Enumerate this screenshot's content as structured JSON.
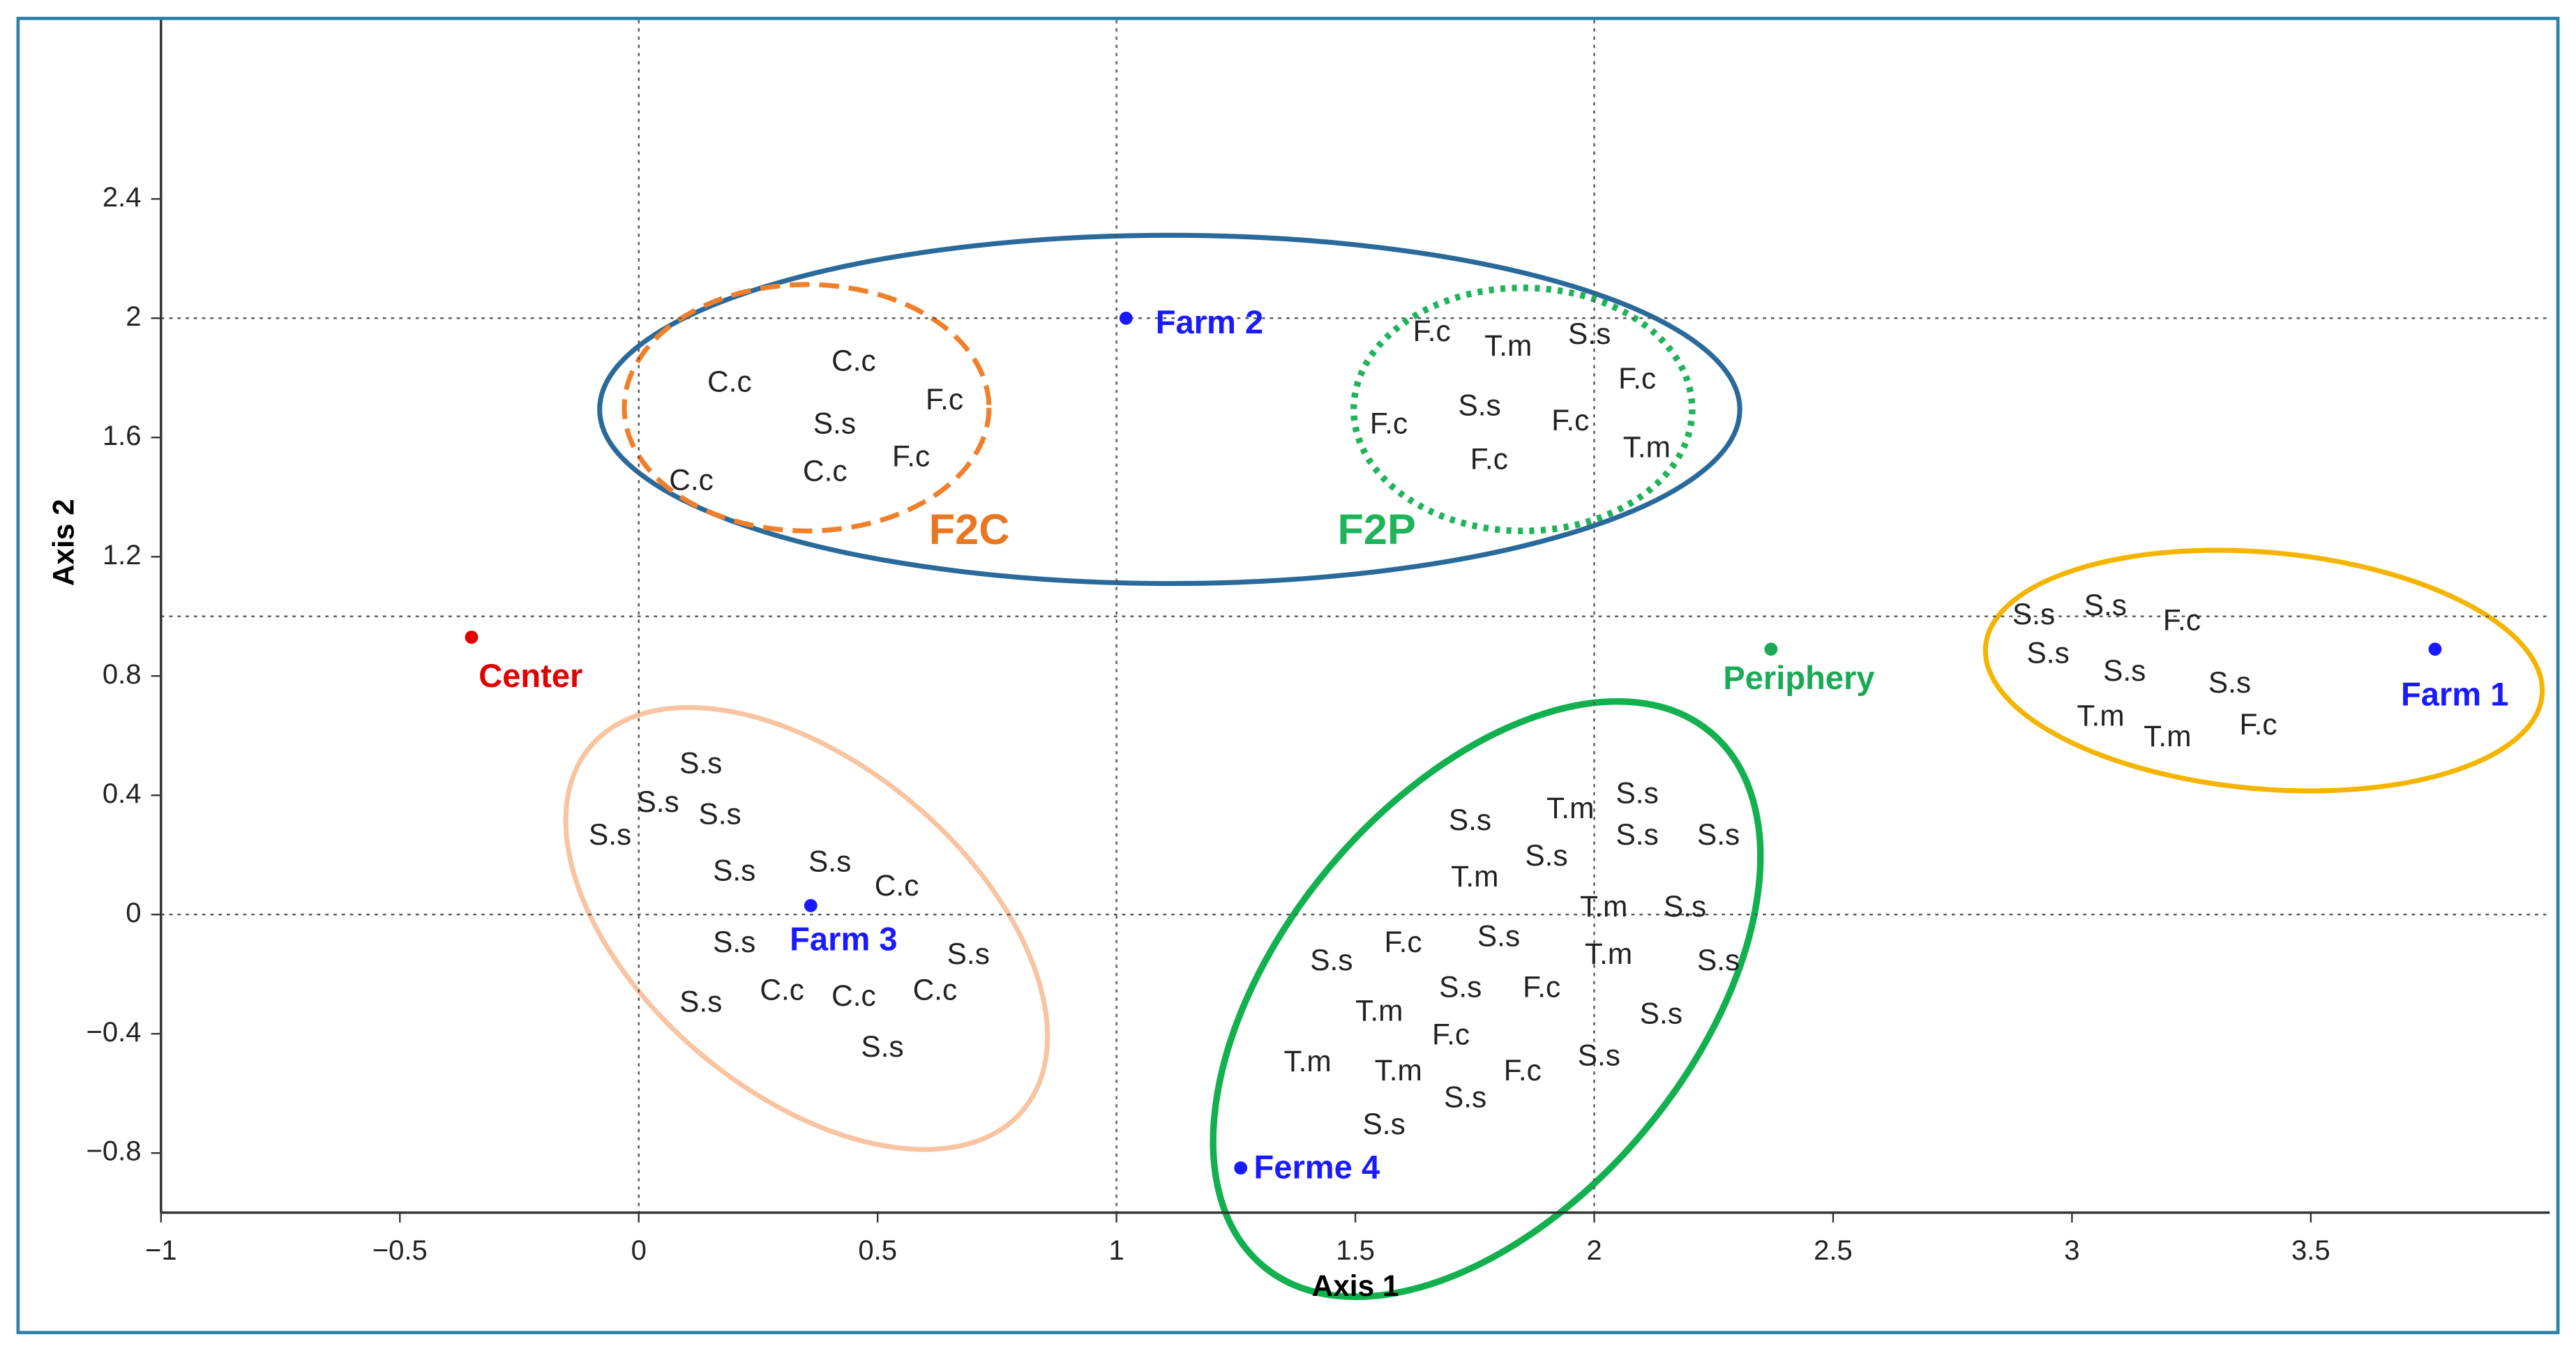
{
  "chart_data": {
    "type": "scatter",
    "x_label": "Axis 1",
    "y_label": "Axis 2",
    "xlim": [
      -1,
      4
    ],
    "ylim": [
      -1,
      3
    ],
    "xticks": [
      {
        "value": -1,
        "label": "−1"
      },
      {
        "value": -0.5,
        "label": "−0.5"
      },
      0,
      0.5,
      1,
      1.5,
      2,
      2.5,
      3,
      3.5
    ],
    "yticks": [
      {
        "value": -0.8,
        "label": "−0.8"
      },
      {
        "value": -0.4,
        "label": "−0.4"
      },
      0,
      0.4,
      0.8,
      1.2,
      1.6,
      2,
      2.4
    ],
    "grid_x": [
      0,
      1,
      2
    ],
    "grid_y": [
      0,
      1,
      2
    ],
    "points": {
      "labels": [
        "C.c",
        "C.c",
        "S.s",
        "F.c",
        "F.c",
        "C.c",
        "C.c",
        "F.c",
        "T.m",
        "S.s",
        "F.c",
        "S.s",
        "F.c",
        "F.c",
        "F.c",
        "T.m",
        "S.s",
        "S.s",
        "F.c",
        "S.s",
        "S.s",
        "S.s",
        "T.m",
        "T.m",
        "F.c",
        "S.s",
        "S.s",
        "S.s",
        "S.s",
        "S.s",
        "S.s",
        "C.c",
        "S.s",
        "S.s",
        "S.s",
        "C.c",
        "C.c",
        "C.c",
        "S.s",
        "S.s",
        "T.m",
        "S.s",
        "S.s",
        "S.s",
        "S.s",
        "T.m",
        "T.m",
        "S.s",
        "S.s",
        "F.c",
        "T.m",
        "S.s",
        "S.s",
        "S.s",
        "F.c",
        "T.m",
        "S.s",
        "F.c",
        "T.m",
        "T.m",
        "F.c",
        "S.s",
        "S.s",
        "S.s"
      ],
      "x": [
        0.19,
        0.45,
        0.41,
        0.64,
        0.57,
        0.39,
        0.11,
        1.66,
        1.82,
        1.99,
        2.09,
        1.76,
        1.57,
        1.95,
        1.78,
        2.11,
        2.92,
        3.07,
        3.23,
        2.95,
        3.11,
        3.33,
        3.06,
        3.2,
        3.39,
        0.13,
        0.04,
        0.17,
        -0.06,
        0.2,
        0.4,
        0.54,
        0.2,
        0.69,
        0.13,
        0.3,
        0.45,
        0.62,
        0.51,
        2.09,
        1.95,
        1.74,
        2.09,
        2.26,
        1.9,
        1.75,
        2.02,
        2.19,
        1.8,
        1.6,
        2.03,
        2.26,
        1.45,
        1.72,
        1.89,
        1.55,
        2.14,
        1.7,
        1.4,
        1.59,
        1.85,
        2.01,
        1.73,
        1.56
      ],
      "y": [
        1.78,
        1.85,
        1.64,
        1.72,
        1.53,
        1.48,
        1.45,
        1.95,
        1.9,
        1.94,
        1.79,
        1.7,
        1.64,
        1.65,
        1.52,
        1.56,
        1.0,
        1.03,
        0.98,
        0.87,
        0.81,
        0.77,
        0.66,
        0.59,
        0.63,
        0.5,
        0.37,
        0.33,
        0.26,
        0.14,
        0.17,
        0.09,
        -0.1,
        -0.14,
        -0.3,
        -0.26,
        -0.28,
        -0.26,
        -0.45,
        0.4,
        0.35,
        0.31,
        0.26,
        0.26,
        0.19,
        0.12,
        0.02,
        0.02,
        -0.08,
        -0.1,
        -0.14,
        -0.16,
        -0.16,
        -0.25,
        -0.25,
        -0.33,
        -0.34,
        -0.41,
        -0.5,
        -0.53,
        -0.53,
        -0.48,
        -0.62,
        -0.71
      ]
    },
    "sites": {
      "labels": [
        "Farm 2",
        "Farm 1",
        "Farm 3",
        "Ferme 4",
        "Center",
        "Periphery"
      ],
      "x": [
        1.02,
        3.76,
        0.36,
        1.26,
        -0.35,
        2.37
      ],
      "y": [
        2.0,
        0.89,
        0.03,
        -0.85,
        0.93,
        0.89
      ],
      "colors": [
        "#1a1aff",
        "#1a1aff",
        "#1a1aff",
        "#1a1aff",
        "#e00000",
        "#1aaa55"
      ]
    },
    "annotations": [
      {
        "text": "F2C",
        "color": "#e87722"
      },
      {
        "text": "F2P",
        "color": "#1fb35a"
      }
    ]
  }
}
